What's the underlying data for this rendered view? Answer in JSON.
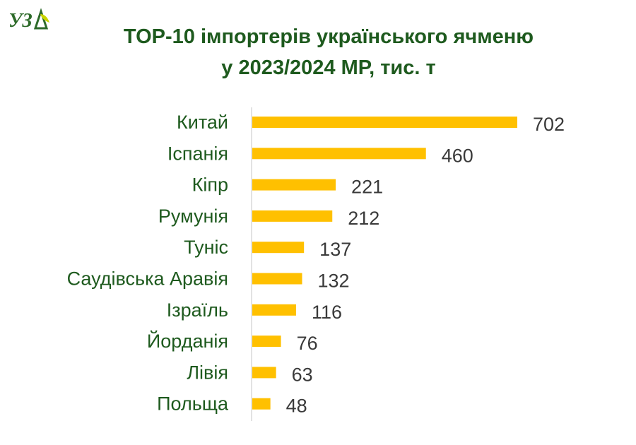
{
  "brand": {
    "logo_text": "УЗА",
    "accent_color": "#1e5a1e",
    "leaf_color": "#c9d400"
  },
  "header": {
    "title_line1": "TOP-10 імпортерів українського ячменю",
    "title_line2": "у 2023/2024 МР, тис. т"
  },
  "chart_data": {
    "type": "bar",
    "orientation": "horizontal",
    "title": "TOP-10 імпортерів українського ячменю у 2023/2024 МР, тис. т",
    "categories": [
      "Китай",
      "Іспанія",
      "Кіпр",
      "Румунія",
      "Туніс",
      "Саудівська Аравія",
      "Ізраїль",
      "Йорданія",
      "Лівія",
      "Польща"
    ],
    "values": [
      702,
      460,
      221,
      212,
      137,
      132,
      116,
      76,
      63,
      48
    ],
    "bar_color": "#ffc000",
    "label_color": "#1e5a1e",
    "value_color": "#3a3a3a",
    "xlim": [
      0,
      702
    ],
    "grid": false,
    "data_labels": true
  }
}
